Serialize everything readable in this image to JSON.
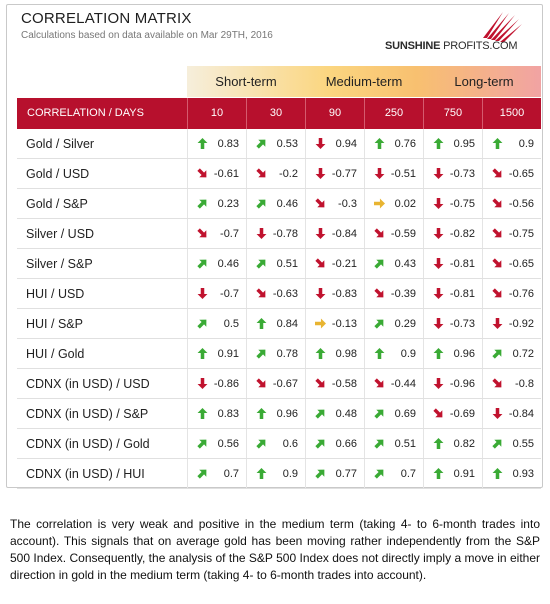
{
  "header": {
    "title": "CORRELATION MATRIX",
    "subtitle": "Calculations based on data available on Mar 29TH, 2016",
    "brand_bold": "SUNSHINE ",
    "brand_thin": "PROFITS.COM"
  },
  "terms": [
    "Short-term",
    "Medium-term",
    "Long-term"
  ],
  "table": {
    "corner_label": "CORRELATION / DAYS",
    "days": [
      "10",
      "30",
      "90",
      "250",
      "750",
      "1500"
    ],
    "rows": [
      {
        "label": "Gold / Silver",
        "values": [
          "0.83",
          "0.53",
          "0.94",
          "0.76",
          "0.95",
          "0.9"
        ],
        "arrows": [
          "up",
          "up-right",
          "down",
          "up",
          "up",
          "up"
        ]
      },
      {
        "label": "Gold / USD",
        "values": [
          "-0.61",
          "-0.2",
          "-0.77",
          "-0.51",
          "-0.73",
          "-0.65"
        ],
        "arrows": [
          "down-right",
          "down-right",
          "down",
          "down",
          "down",
          "down-right"
        ]
      },
      {
        "label": "Gold / S&P",
        "values": [
          "0.23",
          "0.46",
          "-0.3",
          "0.02",
          "-0.75",
          "-0.56"
        ],
        "arrows": [
          "up-right",
          "up-right",
          "down-right",
          "right",
          "down",
          "down-right"
        ]
      },
      {
        "label": "Silver / USD",
        "values": [
          "-0.7",
          "-0.78",
          "-0.84",
          "-0.59",
          "-0.82",
          "-0.75"
        ],
        "arrows": [
          "down-right",
          "down",
          "down",
          "down-right",
          "down",
          "down-right"
        ]
      },
      {
        "label": "Silver / S&P",
        "values": [
          "0.46",
          "0.51",
          "-0.21",
          "0.43",
          "-0.81",
          "-0.65"
        ],
        "arrows": [
          "up-right",
          "up-right",
          "down-right",
          "up-right",
          "down",
          "down-right"
        ]
      },
      {
        "label": "HUI / USD",
        "values": [
          "-0.7",
          "-0.63",
          "-0.83",
          "-0.39",
          "-0.81",
          "-0.76"
        ],
        "arrows": [
          "down",
          "down-right",
          "down",
          "down-right",
          "down",
          "down-right"
        ]
      },
      {
        "label": "HUI / S&P",
        "values": [
          "0.5",
          "0.84",
          "-0.13",
          "0.29",
          "-0.73",
          "-0.92"
        ],
        "arrows": [
          "up-right",
          "up",
          "right",
          "up-right",
          "down",
          "down"
        ]
      },
      {
        "label": "HUI / Gold",
        "values": [
          "0.91",
          "0.78",
          "0.98",
          "0.9",
          "0.96",
          "0.72"
        ],
        "arrows": [
          "up",
          "up-right",
          "up",
          "up",
          "up",
          "up-right"
        ]
      },
      {
        "label": "CDNX (in USD) / USD",
        "values": [
          "-0.86",
          "-0.67",
          "-0.58",
          "-0.44",
          "-0.96",
          "-0.8"
        ],
        "arrows": [
          "down",
          "down-right",
          "down-right",
          "down-right",
          "down",
          "down-right"
        ]
      },
      {
        "label": "CDNX (in USD) / S&P",
        "values": [
          "0.83",
          "0.96",
          "0.48",
          "0.69",
          "-0.69",
          "-0.84"
        ],
        "arrows": [
          "up",
          "up",
          "up-right",
          "up-right",
          "down-right",
          "down"
        ]
      },
      {
        "label": "CDNX (in USD) / Gold",
        "values": [
          "0.56",
          "0.6",
          "0.66",
          "0.51",
          "0.82",
          "0.55"
        ],
        "arrows": [
          "up-right",
          "up-right",
          "up-right",
          "up-right",
          "up",
          "up-right"
        ]
      },
      {
        "label": "CDNX (in USD) / HUI",
        "values": [
          "0.7",
          "0.9",
          "0.77",
          "0.7",
          "0.91",
          "0.93"
        ],
        "arrows": [
          "up-right",
          "up",
          "up-right",
          "up-right",
          "up",
          "up"
        ]
      }
    ]
  },
  "arrow_colors": {
    "up": "#3aaa35",
    "down": "#c0122e",
    "right": "#e8b431"
  },
  "description": "The correlation is very weak and positive in the medium term (taking 4- to 6-month trades into account). This signals that on average gold has been moving rather independently from the S&P 500 Index. Consequently, the analysis of the S&P 500 Index does not directly imply a move in either direction in gold in the medium term (taking 4- to 6-month trades into account)."
}
